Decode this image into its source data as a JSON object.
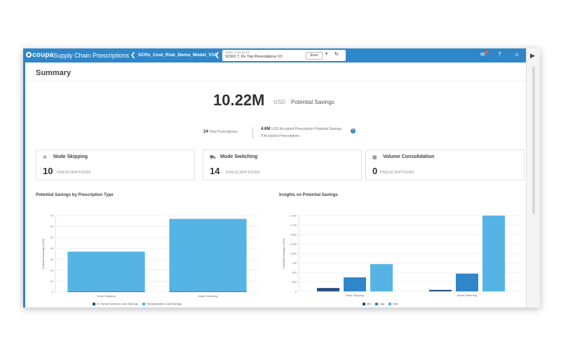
{
  "app": {
    "logo_text": "coupa",
    "title": "Supply Chain Prescriptions",
    "model_name": "SCRx_Cost_Risk_Demo_Model_V10",
    "scenario_small": "SCRX T1 B1 B2 RT",
    "scenario_name": "SCRX 7, Rx Top Prescriptions V2",
    "currency": "Euro"
  },
  "summary": {
    "heading": "Summary",
    "potential_savings_value": "10.22M",
    "potential_savings_unit": "USD",
    "potential_savings_label": "Potential Savings",
    "total_prescriptions_count": "24",
    "total_prescriptions_label": "Total Prescriptions",
    "accepted_value": "4.6M",
    "accepted_label": "USD Accepted Prescription Potential Savings",
    "accepted_count": "7",
    "accepted_count_label": "Accepted Prescriptions"
  },
  "cards": [
    {
      "title": "Node Skipping",
      "count": "10",
      "unit": "PRESCRIPTIONS",
      "icon": "node-skip-icon"
    },
    {
      "title": "Mode Switching",
      "count": "14",
      "unit": "PRESCRIPTIONS",
      "icon": "truck-icon"
    },
    {
      "title": "Volume Consolidation",
      "count": "0",
      "unit": "PRESCRIPTIONS",
      "icon": "consolidation-icon"
    }
  ],
  "colors": {
    "brand": "#2f86c9",
    "light_blue": "#56b4e4",
    "dark_navy": "#2a4f82",
    "mid_blue": "#2f86c9"
  },
  "chart_data": [
    {
      "type": "bar",
      "title": "Potential Savings by Prescription Type",
      "ylabel": "Potential Savings (USD)",
      "categories": [
        "Node Skipping",
        "Mode Switching"
      ],
      "series": [
        {
          "name": "In Transit Inventory Cost Savings",
          "values": [
            0.5,
            0.5
          ]
        },
        {
          "name": "Transportation Cost Savings",
          "values": [
            36.5,
            66.5
          ]
        }
      ],
      "ylim": [
        0,
        70
      ],
      "yticks": [
        "0",
        "10",
        "20",
        "30",
        "40",
        "50",
        "60",
        "70"
      ],
      "grid": true,
      "legend": "bottom"
    },
    {
      "type": "bar",
      "title": "Insights on Potential Savings",
      "ylabel": "Potential Savings (USD)",
      "categories": [
        "Node Skipping",
        "Mode Switching"
      ],
      "series": [
        {
          "name": "Min",
          "values": [
            90,
            40
          ]
        },
        {
          "name": "Avg",
          "values": [
            370,
            470
          ]
        },
        {
          "name": "Max",
          "values": [
            720,
            2000
          ]
        }
      ],
      "ylim": [
        0,
        2000
      ],
      "yticks": [
        "0",
        "250",
        "500",
        "750",
        "1,000",
        "1,250",
        "1,500",
        "1,750",
        "2,000"
      ],
      "grid": true,
      "legend": "bottom"
    }
  ]
}
